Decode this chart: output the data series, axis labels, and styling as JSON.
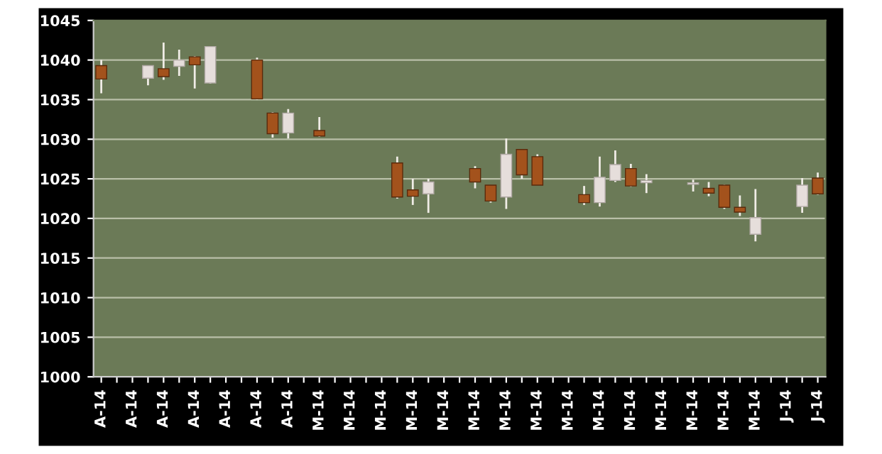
{
  "chart_data": {
    "type": "candlestick",
    "categories": [
      "A-14",
      null,
      "A-14",
      null,
      "A-14",
      null,
      "A-14",
      null,
      "A-14",
      null,
      "A-14",
      null,
      "A-14",
      null,
      "M-14",
      null,
      "M-14",
      null,
      "M-14",
      null,
      "M-14",
      null,
      "M-14",
      null,
      "M-14",
      null,
      "M-14",
      null,
      "M-14",
      null,
      "M-14",
      null,
      "M-14",
      null,
      "M-14",
      null,
      "M-14",
      null,
      "M-14",
      null,
      "M-14",
      null,
      "M-14",
      null,
      "J-14",
      null,
      "J-14"
    ],
    "ohlc": [
      [
        1039.3,
        1040.0,
        1035.8,
        1037.6
      ],
      null,
      null,
      [
        1037.7,
        1039.3,
        1036.8,
        1039.3
      ],
      [
        1038.9,
        1042.2,
        1037.5,
        1037.9
      ],
      [
        1039.2,
        1041.3,
        1038.0,
        1040.0
      ],
      [
        1040.4,
        1040.5,
        1036.4,
        1039.4
      ],
      [
        1037.1,
        1041.7,
        1037.0,
        1041.7
      ],
      null,
      null,
      [
        1040.0,
        1040.3,
        1035.0,
        1035.1
      ],
      [
        1033.3,
        1033.4,
        1030.2,
        1030.7
      ],
      [
        1030.8,
        1033.8,
        1030.1,
        1033.3
      ],
      null,
      [
        1031.1,
        1032.8,
        1030.3,
        1030.4
      ],
      null,
      null,
      null,
      null,
      [
        1027.0,
        1027.8,
        1022.5,
        1022.7
      ],
      [
        1023.6,
        1025.0,
        1021.7,
        1022.8
      ],
      [
        1023.1,
        1025.0,
        1020.7,
        1024.6
      ],
      null,
      null,
      [
        1026.3,
        1026.6,
        1023.8,
        1024.6
      ],
      [
        1024.2,
        1024.2,
        1022.0,
        1022.2
      ],
      [
        1022.7,
        1030.1,
        1021.2,
        1028.1
      ],
      [
        1028.7,
        1028.7,
        1025.0,
        1025.5
      ],
      [
        1027.8,
        1028.1,
        1024.2,
        1024.2
      ],
      null,
      null,
      [
        1023.0,
        1024.1,
        1021.7,
        1022.0
      ],
      [
        1022.0,
        1027.8,
        1021.5,
        1025.2
      ],
      [
        1024.8,
        1028.6,
        1024.6,
        1026.8
      ],
      [
        1026.3,
        1026.9,
        1024.0,
        1024.1
      ],
      [
        1024.5,
        1025.6,
        1023.2,
        1024.8
      ],
      null,
      null,
      [
        1024.3,
        1024.9,
        1023.4,
        1024.5
      ],
      [
        1023.8,
        1024.6,
        1022.8,
        1023.2
      ],
      [
        1024.2,
        1024.3,
        1021.2,
        1021.4
      ],
      [
        1021.4,
        1022.9,
        1020.3,
        1020.8
      ],
      [
        1018.0,
        1023.7,
        1017.1,
        1020.1
      ],
      null,
      null,
      [
        1021.5,
        1025.1,
        1020.7,
        1024.2
      ],
      [
        1025.1,
        1025.8,
        1023.0,
        1023.1
      ]
    ],
    "colors": [
      "#a3521c",
      null,
      null,
      "#e6dedb",
      "#a3521c",
      "#e6dedb",
      "#a3521c",
      "#e6dedb",
      null,
      null,
      "#a3521c",
      "#a3521c",
      "#e6dedb",
      null,
      "#a3521c",
      null,
      null,
      null,
      null,
      "#a3521c",
      "#a3521c",
      "#e6dedb",
      null,
      null,
      "#a3521c",
      "#a3521c",
      "#e6dedb",
      "#a3521c",
      "#a3521c",
      null,
      null,
      "#a3521c",
      "#e6dedb",
      "#e6dedb",
      "#a3521c",
      "#e6dedb",
      null,
      null,
      "#e6dedb",
      "#a3521c",
      "#a3521c",
      "#a3521c",
      "#e6dedb",
      null,
      null,
      "#e6dedb",
      "#a3521c"
    ],
    "ylim": [
      1000,
      1045
    ],
    "yticks": [
      1000,
      1005,
      1010,
      1015,
      1020,
      1025,
      1030,
      1035,
      1040,
      1045
    ],
    "grid": "y"
  }
}
